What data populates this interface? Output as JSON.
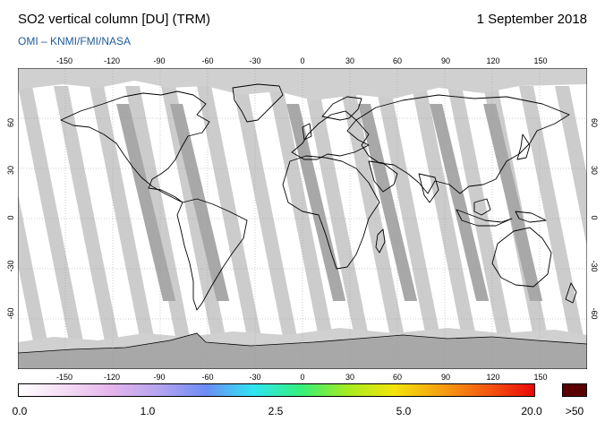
{
  "header": {
    "title": "SO2 vertical column [DU] (TRM)",
    "date": "1 September 2018",
    "credit": "OMI  –  KNMI/FMI/NASA"
  },
  "map": {
    "projection": "plate-carree",
    "lon_range": [
      -180,
      180
    ],
    "lat_range": [
      -90,
      90
    ],
    "lon_ticks": [
      "-150",
      "-120",
      "-90",
      "-60",
      "-30",
      "0",
      "30",
      "60",
      "90",
      "120",
      "150"
    ],
    "lat_ticks": [
      "60",
      "30",
      "0",
      "-30",
      "-60"
    ],
    "graticule_step_deg": 30,
    "colors": {
      "no_data": "#d0d0d0",
      "orbit_gap": "#cccccc",
      "orbit_overlap": "#a8a8a8",
      "clear": "#ffffff",
      "coastline": "#000000",
      "graticule": "#9a9a9a"
    }
  },
  "colorbar": {
    "labels": [
      "0.0",
      "1.0",
      "2.5",
      "5.0",
      "20.0"
    ],
    "saturation_label": ">50",
    "saturation_color": "#5a0000",
    "gradient_colors": [
      "#ffffff",
      "#f4dcf4",
      "#e4b4ec",
      "#b4a4f0",
      "#6c8cf4",
      "#30e4f4",
      "#34f07c",
      "#a4ec20",
      "#f4e40c",
      "#f4a010",
      "#f45810",
      "#e80808"
    ]
  }
}
